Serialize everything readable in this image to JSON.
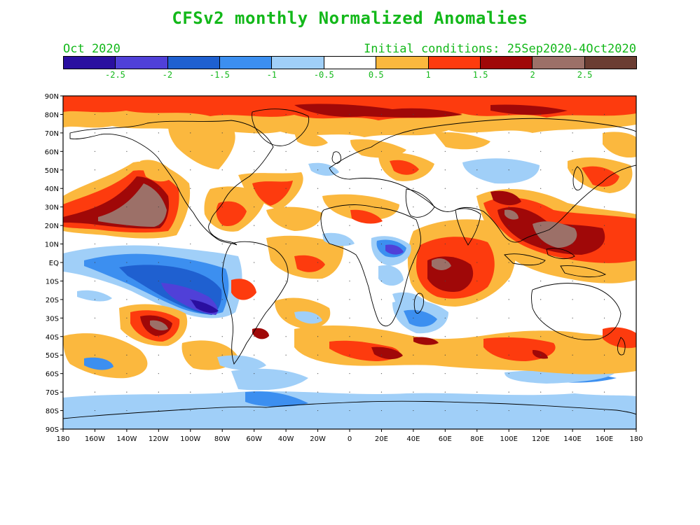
{
  "title": "CFSv2 monthly Normalized Anomalies",
  "valid_month": "Oct 2020",
  "initial_conditions": "Initial conditions: 25Sep2020-4Oct2020",
  "colorbar": {
    "colors": [
      "#2a0fa0",
      "#5040d8",
      "#1f60d0",
      "#3c8ff0",
      "#a0cff8",
      "#ffffff",
      "#fbb83e",
      "#fd3b0e",
      "#a00808",
      "#9c7068",
      "#6b3d32"
    ],
    "labels": [
      "-2.5",
      "-2",
      "-1.5",
      "-1",
      "-0.5",
      "0.5",
      "1",
      "1.5",
      "2",
      "2.5"
    ]
  },
  "map": {
    "lat_labels": [
      "90N",
      "80N",
      "70N",
      "60N",
      "50N",
      "40N",
      "30N",
      "20N",
      "10N",
      "EQ",
      "10S",
      "20S",
      "30S",
      "40S",
      "50S",
      "60S",
      "70S",
      "80S",
      "90S"
    ],
    "lon_labels": [
      "180",
      "160W",
      "140W",
      "120W",
      "100W",
      "80W",
      "60W",
      "40W",
      "20W",
      "0",
      "20E",
      "40E",
      "60E",
      "80E",
      "100E",
      "120E",
      "140E",
      "160E",
      "180"
    ]
  }
}
